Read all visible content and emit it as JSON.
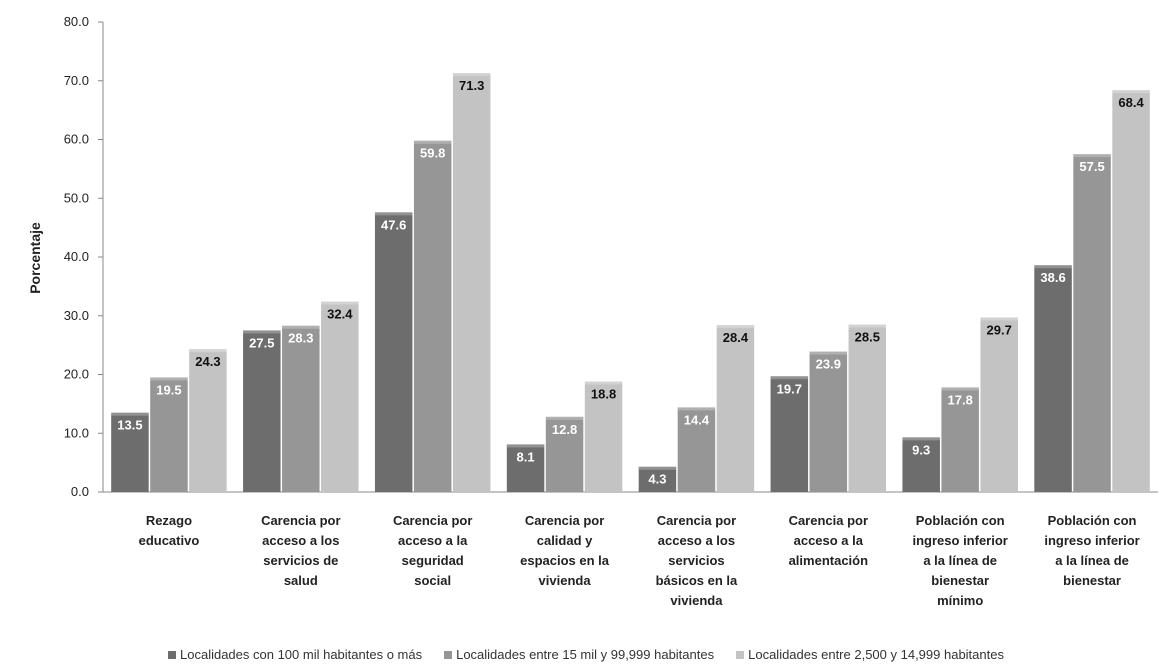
{
  "chart_data": {
    "type": "bar",
    "title": "",
    "xlabel": "",
    "ylabel": "Porcentaje",
    "ylim": [
      0,
      80
    ],
    "yticks": [
      "0.0",
      "10.0",
      "20.0",
      "30.0",
      "40.0",
      "50.0",
      "60.0",
      "70.0",
      "80.0"
    ],
    "grid": false,
    "legend_position": "bottom",
    "categories": [
      [
        "Rezago",
        "educativo"
      ],
      [
        "Carencia por",
        "acceso a los",
        "servicios de",
        "salud"
      ],
      [
        "Carencia por",
        "acceso a la",
        "seguridad",
        "social"
      ],
      [
        "Carencia por",
        "calidad y",
        "espacios en la",
        "vivienda"
      ],
      [
        "Carencia por",
        "acceso a los",
        "servicios",
        "básicos en la",
        "vivienda"
      ],
      [
        "Carencia por",
        "acceso a la",
        "alimentación"
      ],
      [
        "Población con",
        "ingreso inferior",
        "a la línea de",
        "bienestar",
        "mínimo"
      ],
      [
        "Población con",
        "ingreso inferior",
        "a la línea de",
        "bienestar"
      ]
    ],
    "series": [
      {
        "name": "Localidades con 100 mil habitantes o más",
        "color": "#6d6d6d",
        "label_color": "#ffffff",
        "values": [
          13.5,
          27.5,
          47.6,
          8.1,
          4.3,
          19.7,
          9.3,
          38.6
        ]
      },
      {
        "name": "Localidades entre 15 mil y 99,999 habitantes",
        "color": "#969696",
        "label_color": "#ffffff",
        "values": [
          19.5,
          28.3,
          59.8,
          12.8,
          14.4,
          23.9,
          17.8,
          57.5
        ]
      },
      {
        "name": "Localidades entre 2,500 y 14,999 habitantes",
        "color": "#c3c3c3",
        "label_color": "#111111",
        "values": [
          24.3,
          32.4,
          71.3,
          18.8,
          28.4,
          28.5,
          29.7,
          68.4
        ]
      }
    ]
  }
}
